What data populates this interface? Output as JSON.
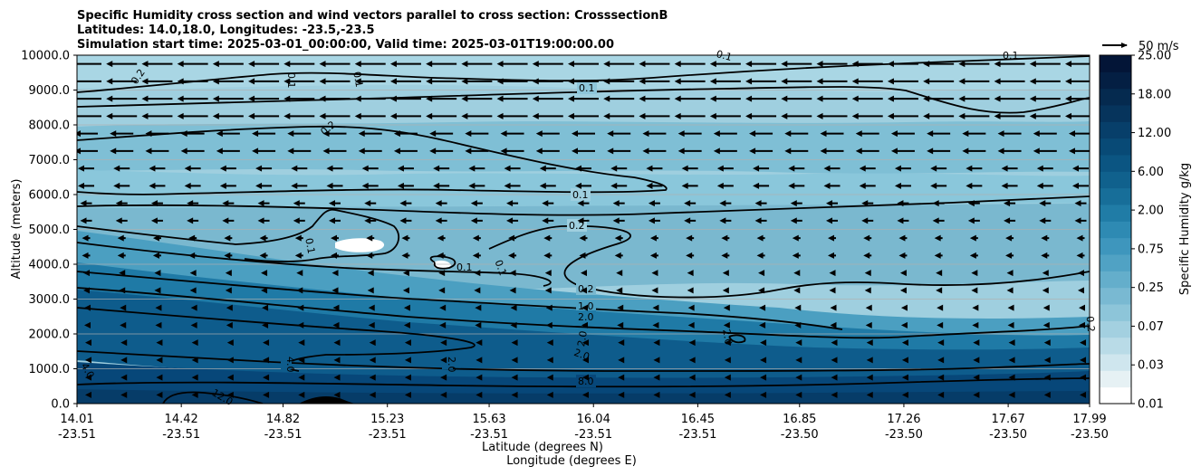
{
  "chart_data": {
    "type": "heatmap",
    "title_lines": [
      "Specific Humidity cross section and wind vectors parallel to cross section: CrosssectionB",
      "Latitudes: 14.0,18.0, Longitudes: -23.5,-23.5",
      "Simulation start time: 2025-03-01_00:00:00, Valid time: 2025-03-01T19:00:00.00"
    ],
    "ylabel": "Altitude (meters)",
    "xlabel_lat": "Latitude (degrees N)",
    "xlabel_lon": "Longitude (degrees E)",
    "y_ticks": [
      "0.0",
      "1000.0",
      "2000.0",
      "3000.0",
      "4000.0",
      "5000.0",
      "6000.0",
      "7000.0",
      "8000.0",
      "9000.0",
      "10000.0"
    ],
    "ylim": [
      0,
      10000
    ],
    "x_ticks_lat": [
      "14.01",
      "14.42",
      "14.82",
      "15.23",
      "15.63",
      "16.04",
      "16.45",
      "16.85",
      "17.26",
      "17.67",
      "17.99"
    ],
    "x_ticks_lon": [
      "-23.51",
      "-23.51",
      "-23.51",
      "-23.51",
      "-23.51",
      "-23.51",
      "-23.51",
      "-23.50",
      "-23.50",
      "-23.50",
      "-23.50"
    ],
    "x_tick_values": [
      14.01,
      14.42,
      14.82,
      15.23,
      15.63,
      16.04,
      16.45,
      16.85,
      17.26,
      17.67,
      17.99
    ],
    "xlim": [
      14.01,
      17.99
    ],
    "colorbar": {
      "label": "Specific Humidity g/kg",
      "ticks": [
        "0.01",
        "0.03",
        "0.07",
        "0.25",
        "0.75",
        "2.00",
        "6.00",
        "12.00",
        "18.00",
        "25.00"
      ],
      "colors": [
        "#ffffff",
        "#e6f1f4",
        "#cfe6ee",
        "#b9dbe7",
        "#a3d0e0",
        "#8dc5d9",
        "#79b9d2",
        "#64aecb",
        "#50a2c4",
        "#3e96bd",
        "#2e8ab3",
        "#207ca6",
        "#176e99",
        "#10618d",
        "#0b5582",
        "#084a76",
        "#073f6a",
        "#06345c",
        "#052a4f",
        "#041f43",
        "#031537"
      ]
    },
    "quiver_key_label": "50 m/s",
    "grid": true,
    "contour_levels_labeled": [
      "0.1",
      "0.2",
      "1.0",
      "2.0",
      "4.0",
      "8.0",
      "12.0"
    ],
    "moisture_profile_by_altitude_m": [
      {
        "altitude": 0,
        "q": 12.0
      },
      {
        "altitude": 500,
        "q": 9.0
      },
      {
        "altitude": 1000,
        "q": 6.0
      },
      {
        "altitude": 2000,
        "q": 2.0
      },
      {
        "altitude": 3000,
        "q": 0.75
      },
      {
        "altitude": 4000,
        "q": 0.2
      },
      {
        "altitude": 5000,
        "q": 0.1
      },
      {
        "altitude": 6000,
        "q": 0.12
      },
      {
        "altitude": 8000,
        "q": 0.1
      },
      {
        "altitude": 10000,
        "q": 0.05
      }
    ],
    "wind_vectors": "westward (pointing to decreasing latitude), strongest above 7000 m"
  }
}
